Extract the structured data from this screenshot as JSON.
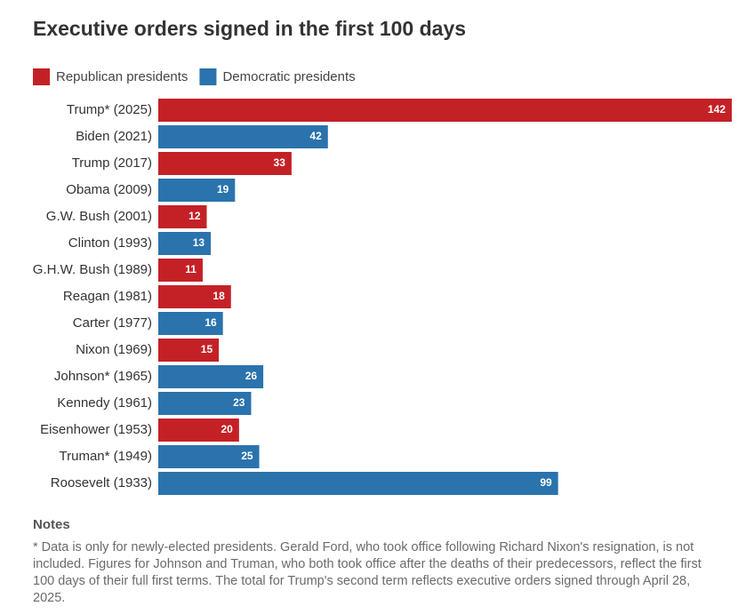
{
  "chart_data": {
    "type": "bar",
    "orientation": "horizontal",
    "title": "Executive orders signed in the first 100 days",
    "categories": [
      "Trump* (2025)",
      "Biden (2021)",
      "Trump (2017)",
      "Obama (2009)",
      "G.W. Bush (2001)",
      "Clinton (1993)",
      "G.H.W. Bush (1989)",
      "Reagan (1981)",
      "Carter (1977)",
      "Nixon (1969)",
      "Johnson* (1965)",
      "Kennedy (1961)",
      "Eisenhower (1953)",
      "Truman* (1949)",
      "Roosevelt (1933)"
    ],
    "series": [
      {
        "name": "Republican presidents",
        "color": "#c42127",
        "values": [
          142,
          null,
          33,
          null,
          12,
          null,
          11,
          18,
          null,
          15,
          null,
          null,
          20,
          null,
          null
        ]
      },
      {
        "name": "Democratic presidents",
        "color": "#2a73ad",
        "values": [
          null,
          42,
          null,
          19,
          null,
          13,
          null,
          null,
          16,
          null,
          26,
          23,
          null,
          25,
          99
        ]
      }
    ],
    "legend": "top-left",
    "notes_title": "Notes",
    "notes": "* Data is only for newly-elected presidents. Gerald Ford, who took office following Richard Nixon's resignation, is not included. Figures for Johnson and Truman, who both took office after the deaths of their predecessors, reflect the first 100 days of their full first terms. The total for Trump's second term reflects executive orders signed through April 28, 2025."
  }
}
